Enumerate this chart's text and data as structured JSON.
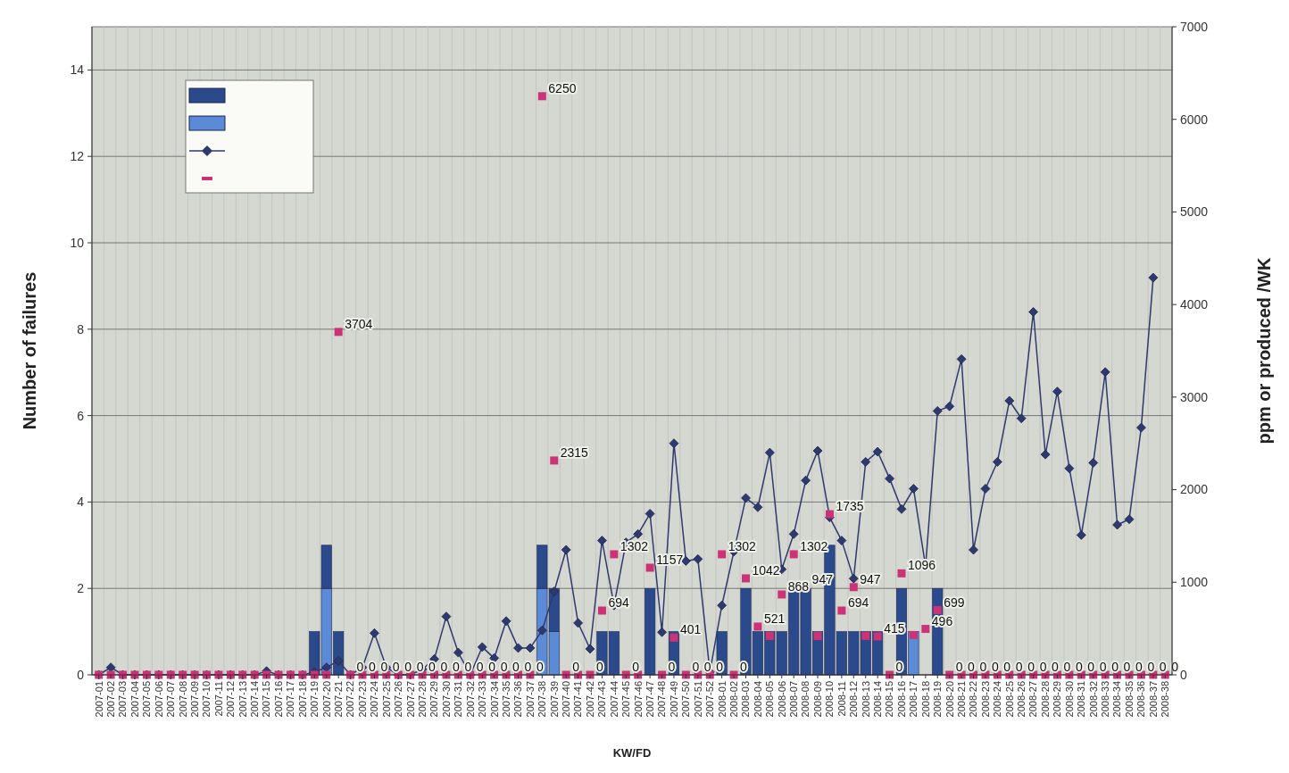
{
  "chart_data": {
    "type": "bar",
    "stacked": true,
    "xlabel": "KW/FD",
    "ylabel": "Number of failures",
    "y2label": "ppm or produced /WK",
    "categories": [
      "2007-01",
      "2007-02",
      "2007-03",
      "2007-04",
      "2007-05",
      "2007-06",
      "2007-07",
      "2007-08",
      "2007-09",
      "2007-10",
      "2007-11",
      "2007-12",
      "2007-13",
      "2007-14",
      "2007-15",
      "2007-16",
      "2007-17",
      "2007-18",
      "2007-19",
      "2007-20",
      "2007-21",
      "2007-22",
      "2007-23",
      "2007-24",
      "2007-25",
      "2007-26",
      "2007-27",
      "2007-28",
      "2007-29",
      "2007-30",
      "2007-31",
      "2007-32",
      "2007-33",
      "2007-34",
      "2007-35",
      "2007-36",
      "2007-37",
      "2007-38",
      "2007-39",
      "2007-40",
      "2007-41",
      "2007-42",
      "2007-43",
      "2007-44",
      "2007-45",
      "2007-46",
      "2007-47",
      "2007-48",
      "2007-49",
      "2007-50",
      "2007-51",
      "2007-52",
      "2008-01",
      "2008-02",
      "2008-03",
      "2008-04",
      "2008-05",
      "2008-06",
      "2008-07",
      "2008-08",
      "2008-09",
      "2008-10",
      "2008-11",
      "2008-12",
      "2008-13",
      "2008-14",
      "2008-15",
      "2008-16",
      "2008-17",
      "2008-18",
      "2008-19",
      "2008-20",
      "2008-21",
      "2008-22",
      "2008-23",
      "2008-24",
      "2008-25",
      "2008-26",
      "2008-27",
      "2008-28",
      "2008-29",
      "2008-30",
      "2008-31",
      "2008-32",
      "2008-33",
      "2008-34",
      "2008-35",
      "2008-36",
      "2008-37",
      "2008-38"
    ],
    "ylim": [
      0,
      15
    ],
    "yticks": [
      0,
      2,
      4,
      6,
      8,
      10,
      12,
      14
    ],
    "y2lim": [
      0,
      7000
    ],
    "y2ticks": [
      0,
      1000,
      2000,
      3000,
      4000,
      5000,
      6000,
      7000
    ],
    "grid": true,
    "series": [
      {
        "color": "#5b8bd6",
        "values": [
          0,
          0,
          0,
          0,
          0,
          0,
          0,
          0,
          0,
          0,
          0,
          0,
          0,
          0,
          0,
          0,
          0,
          0,
          0,
          2,
          0,
          0,
          0,
          0,
          0,
          0,
          0,
          0,
          0,
          0,
          0,
          0,
          0,
          0,
          0,
          0,
          0,
          2,
          1,
          0,
          0,
          0,
          0,
          0,
          0,
          0,
          0,
          0,
          0,
          0,
          0,
          0,
          0,
          0,
          0,
          0,
          0,
          0,
          0,
          0,
          0,
          0,
          0,
          0,
          0,
          0,
          0,
          0,
          1,
          0,
          0,
          0,
          0,
          0,
          0,
          0,
          0,
          0,
          0,
          0,
          0,
          0,
          0,
          0,
          0,
          0,
          0,
          0,
          0,
          0
        ]
      },
      {
        "color": "#2b4a8c",
        "values": [
          0,
          0,
          0,
          0,
          0,
          0,
          0,
          0,
          0,
          0,
          0,
          0,
          0,
          0,
          0,
          0,
          0,
          0,
          1,
          1,
          1,
          0,
          0,
          0,
          0,
          0,
          0,
          0,
          0,
          0,
          0,
          0,
          0,
          0,
          0,
          0,
          0,
          1,
          1,
          0,
          0,
          0,
          1,
          1,
          0,
          0,
          2,
          0,
          1,
          0,
          0,
          0,
          1,
          0,
          2,
          1,
          1,
          1,
          2,
          2,
          1,
          3,
          1,
          1,
          1,
          1,
          0,
          2,
          0,
          0,
          2,
          0,
          0,
          0,
          0,
          0,
          0,
          0,
          0,
          0,
          0,
          0,
          0,
          0,
          0,
          0,
          0,
          0,
          0,
          0
        ]
      },
      {
        "type": "line",
        "axis": "y2",
        "color": "#2e3a6e",
        "marker": "diamond",
        "values": [
          0,
          80,
          0,
          0,
          0,
          0,
          0,
          0,
          0,
          0,
          0,
          0,
          0,
          0,
          40,
          0,
          0,
          0,
          30,
          80,
          150,
          0,
          80,
          450,
          80,
          0,
          0,
          60,
          170,
          630,
          240,
          0,
          300,
          180,
          580,
          290,
          290,
          480,
          900,
          1350,
          560,
          280,
          1450,
          750,
          1430,
          1520,
          1740,
          460,
          2500,
          1230,
          1250,
          30,
          750,
          1330,
          1910,
          1810,
          2400,
          1140,
          1520,
          2100,
          2420,
          1700,
          1450,
          1040,
          2300,
          2410,
          2120,
          1790,
          2010,
          1170,
          2850,
          2900,
          3410,
          1350,
          2010,
          2300,
          2960,
          2770,
          3920,
          2380,
          3060,
          2230,
          1510,
          2290,
          3270,
          1620,
          1680,
          2670,
          4290,
          null
        ]
      },
      {
        "type": "scatter",
        "axis": "y2",
        "color": "#cc3377",
        "marker": "square",
        "values": [
          0,
          0,
          0,
          0,
          0,
          0,
          0,
          0,
          0,
          0,
          0,
          0,
          0,
          0,
          0,
          0,
          0,
          0,
          0,
          0,
          3704,
          0,
          0,
          0,
          0,
          0,
          0,
          0,
          0,
          0,
          0,
          0,
          0,
          0,
          0,
          0,
          0,
          6250,
          2315,
          0,
          0,
          0,
          694,
          1302,
          0,
          0,
          1157,
          0,
          401,
          0,
          0,
          0,
          1302,
          0,
          1042,
          521,
          420,
          868,
          1302,
          947,
          420,
          1735,
          694,
          947,
          420,
          415,
          0,
          1096,
          430,
          496,
          699,
          0,
          0,
          0,
          0,
          0,
          0,
          0,
          0,
          0,
          0,
          0,
          0,
          0,
          0,
          0,
          0,
          0,
          0,
          0
        ],
        "value_labels": [
          null,
          null,
          null,
          null,
          null,
          null,
          null,
          null,
          null,
          null,
          null,
          null,
          null,
          null,
          null,
          null,
          null,
          null,
          null,
          null,
          "3704",
          "0",
          "0",
          "0",
          "0",
          "0",
          "0",
          "0",
          "0",
          "0",
          "0",
          "0",
          "0",
          "0",
          "0",
          "0",
          "0",
          "6250",
          "2315",
          "0",
          null,
          "0",
          "694",
          "1302",
          "0",
          null,
          "1157",
          "0",
          "401",
          "0",
          "0",
          "0",
          "1302",
          "0",
          "1042",
          "521",
          null,
          "868",
          "1302",
          "947",
          null,
          "1735",
          "694",
          "947",
          null,
          "415",
          "0",
          "1096",
          null,
          "496",
          "699",
          "0",
          "0",
          "0",
          "0",
          "0",
          "0",
          "0",
          "0",
          "0",
          "0",
          "0",
          "0",
          "0",
          "0",
          "0",
          "0",
          "0",
          "0",
          "0"
        ]
      }
    ]
  }
}
